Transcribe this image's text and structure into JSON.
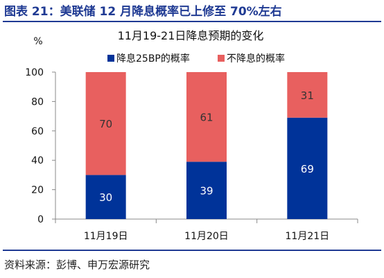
{
  "figure_title": "图表 21：美联储 12 月降息概率已上修至 70%左右",
  "source": "资料来源：彭博、申万宏源研究",
  "colors": {
    "title": "#1f3a93",
    "cut": "#003399",
    "no_cut": "#e8605f"
  },
  "chart_data": {
    "type": "bar",
    "stacked": true,
    "title": "11月19-21日降息预期的变化",
    "ylabel": "%",
    "xlabel": "",
    "ylim": [
      0,
      100
    ],
    "yticks": [
      0,
      20,
      40,
      60,
      80,
      100
    ],
    "categories": [
      "11月19日",
      "11月20日",
      "11月21日"
    ],
    "series": [
      {
        "name": "降息25BP的概率",
        "values": [
          30,
          39,
          69
        ],
        "color": "#003399"
      },
      {
        "name": "不降息的概率",
        "values": [
          70,
          61,
          31
        ],
        "color": "#e8605f"
      }
    ],
    "legend_position": "top",
    "data_labels": true,
    "grid": false
  }
}
